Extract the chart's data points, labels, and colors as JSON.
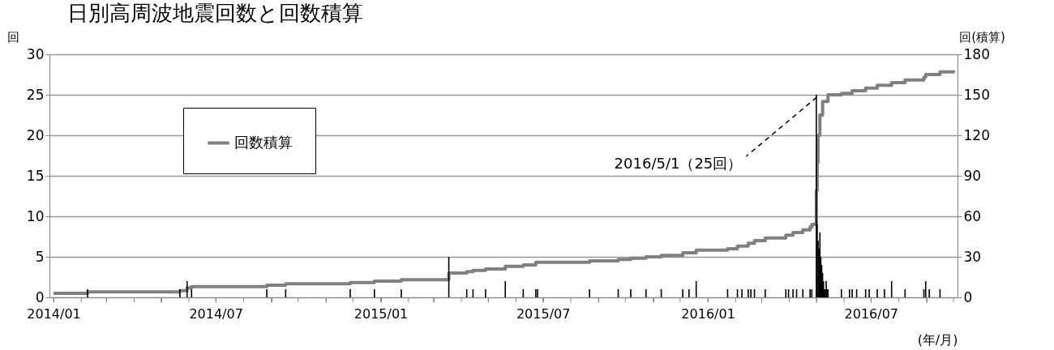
{
  "chart_data": {
    "type": "bar",
    "title": "日別高周波地震回数と回数積算",
    "ylabel": "回",
    "y2label": "回(積算)",
    "xlabel": "(年/月)",
    "annotations": [
      {
        "text": "2016/5/1（25回）",
        "x": "2016-05-01",
        "y": 25
      }
    ],
    "xlim": [
      "2014-01-01",
      "2016-10-01"
    ],
    "xticks": [
      {
        "value": "2014-01",
        "label": "2014/01"
      },
      {
        "value": "2014-02",
        "label": null
      },
      {
        "value": "2014-03",
        "label": null
      },
      {
        "value": "2014-04",
        "label": null
      },
      {
        "value": "2014-05",
        "label": null
      },
      {
        "value": "2014-06",
        "label": null
      },
      {
        "value": "2014-07",
        "label": "2014/07"
      },
      {
        "value": "2014-08",
        "label": null
      },
      {
        "value": "2014-09",
        "label": null
      },
      {
        "value": "2014-10",
        "label": null
      },
      {
        "value": "2014-11",
        "label": null
      },
      {
        "value": "2014-12",
        "label": null
      },
      {
        "value": "2015-01",
        "label": "2015/01"
      },
      {
        "value": "2015-02",
        "label": null
      },
      {
        "value": "2015-03",
        "label": null
      },
      {
        "value": "2015-04",
        "label": null
      },
      {
        "value": "2015-05",
        "label": null
      },
      {
        "value": "2015-06",
        "label": null
      },
      {
        "value": "2015-07",
        "label": "2015/07"
      },
      {
        "value": "2015-08",
        "label": null
      },
      {
        "value": "2015-09",
        "label": null
      },
      {
        "value": "2015-10",
        "label": null
      },
      {
        "value": "2015-11",
        "label": null
      },
      {
        "value": "2015-12",
        "label": null
      },
      {
        "value": "2016-01",
        "label": "2016/01"
      },
      {
        "value": "2016-02",
        "label": null
      },
      {
        "value": "2016-03",
        "label": null
      },
      {
        "value": "2016-04",
        "label": null
      },
      {
        "value": "2016-05",
        "label": null
      },
      {
        "value": "2016-06",
        "label": null
      },
      {
        "value": "2016-07",
        "label": "2016/07"
      },
      {
        "value": "2016-08",
        "label": null
      },
      {
        "value": "2016-09",
        "label": null
      },
      {
        "value": "2016-10",
        "label": null
      }
    ],
    "ylim": [
      0,
      30
    ],
    "yticks": [
      0,
      5,
      10,
      15,
      20,
      25,
      30
    ],
    "y2lim": [
      0,
      180
    ],
    "y2ticks": [
      0,
      30,
      60,
      90,
      120,
      150,
      180
    ],
    "grid": "y",
    "legend": "top left",
    "series": [
      {
        "color": "#000000",
        "x": [
          "2014-02-08",
          "2014-05-22",
          "2014-05-30",
          "2014-06-04",
          "2014-08-27",
          "2014-09-17",
          "2014-11-28",
          "2014-12-25",
          "2015-01-24",
          "2015-03-18",
          "2015-04-07",
          "2015-04-14",
          "2015-04-28",
          "2015-05-20",
          "2015-06-09",
          "2015-06-23",
          "2015-06-25",
          "2015-08-22",
          "2015-09-23",
          "2015-10-07",
          "2015-10-24",
          "2015-11-10",
          "2015-12-04",
          "2015-12-11",
          "2015-12-19",
          "2016-01-23",
          "2016-02-03",
          "2016-02-08",
          "2016-02-15",
          "2016-02-18",
          "2016-02-22",
          "2016-03-05",
          "2016-03-28",
          "2016-03-31",
          "2016-04-05",
          "2016-04-09",
          "2016-04-16",
          "2016-04-24",
          "2016-04-26",
          "2016-05-01",
          "2016-05-02",
          "2016-05-03",
          "2016-05-04",
          "2016-05-05",
          "2016-05-06",
          "2016-05-07",
          "2016-05-08",
          "2016-05-09",
          "2016-05-10",
          "2016-05-11",
          "2016-05-12",
          "2016-05-13",
          "2016-05-14",
          "2016-05-29",
          "2016-06-07",
          "2016-06-10",
          "2016-06-15",
          "2016-06-25",
          "2016-06-29",
          "2016-07-08",
          "2016-07-16",
          "2016-07-24",
          "2016-08-08",
          "2016-08-29",
          "2016-08-31",
          "2016-09-04",
          "2016-09-16"
        ],
        "values": [
          1,
          1,
          2,
          1,
          1,
          1,
          1,
          1,
          1,
          5,
          1,
          1,
          1,
          2,
          1,
          1,
          1,
          1,
          1,
          1,
          1,
          1,
          1,
          1,
          2,
          1,
          1,
          1,
          1,
          1,
          1,
          1,
          1,
          1,
          1,
          1,
          1,
          1,
          1,
          25,
          9,
          7,
          6,
          8,
          5,
          4,
          3,
          2,
          1,
          1,
          2,
          1,
          1,
          1,
          1,
          1,
          1,
          1,
          1,
          1,
          1,
          2,
          1,
          1,
          2,
          1,
          1
        ]
      },
      {
        "type": "step",
        "name": "回数積算",
        "color": "#808080",
        "axis": "y2",
        "x": [
          "2014-01-01",
          "2014-02-08",
          "2014-05-22",
          "2014-05-30",
          "2014-06-04",
          "2014-08-27",
          "2014-09-17",
          "2014-11-28",
          "2014-12-25",
          "2015-01-24",
          "2015-03-18",
          "2015-04-07",
          "2015-04-14",
          "2015-04-28",
          "2015-05-20",
          "2015-06-09",
          "2015-06-23",
          "2015-08-22",
          "2015-09-23",
          "2015-10-07",
          "2015-10-24",
          "2015-11-10",
          "2015-12-04",
          "2015-12-19",
          "2016-01-23",
          "2016-02-03",
          "2016-02-15",
          "2016-02-22",
          "2016-03-05",
          "2016-03-28",
          "2016-04-05",
          "2016-04-16",
          "2016-04-24",
          "2016-04-26",
          "2016-05-01",
          "2016-05-02",
          "2016-05-03",
          "2016-05-05",
          "2016-05-08",
          "2016-05-14",
          "2016-05-29",
          "2016-06-10",
          "2016-06-25",
          "2016-07-08",
          "2016-07-24",
          "2016-08-08",
          "2016-08-29",
          "2016-08-31",
          "2016-09-16",
          "2016-10-01"
        ],
        "values": [
          3,
          4,
          5,
          7,
          8,
          9,
          10,
          11,
          12,
          13,
          18,
          19,
          20,
          21,
          23,
          24,
          26,
          27,
          28,
          29,
          30,
          31,
          33,
          35,
          36,
          38,
          40,
          42,
          44,
          46,
          48,
          50,
          52,
          54,
          79,
          100,
          120,
          135,
          145,
          150,
          151,
          153,
          155,
          157,
          159,
          161,
          163,
          165,
          167,
          168
        ]
      }
    ]
  }
}
